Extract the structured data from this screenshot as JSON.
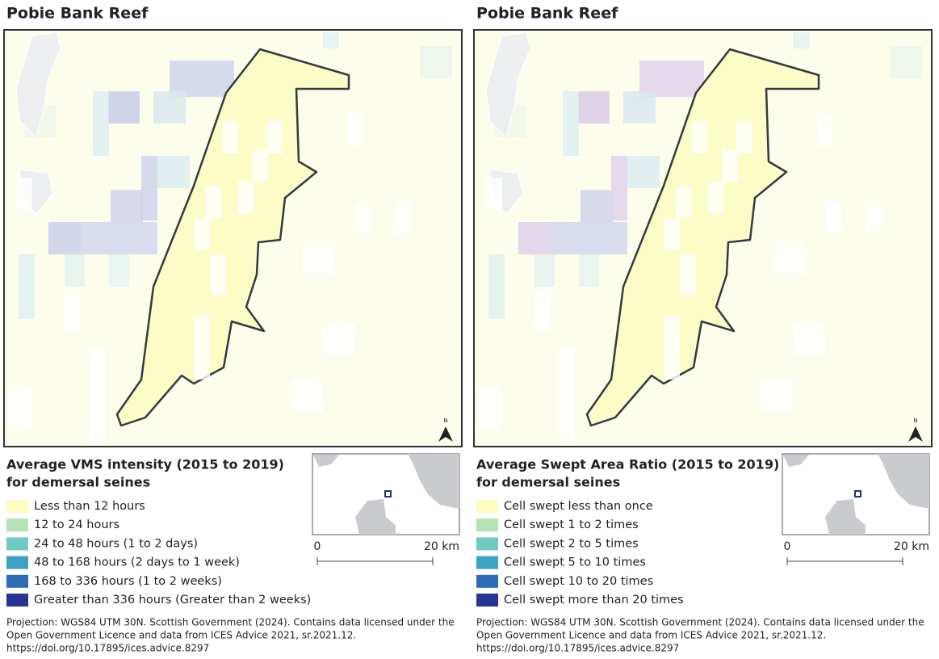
{
  "panels": [
    {
      "title": "Pobie Bank Reef",
      "legend_title": [
        "Average VMS intensity (2015 to 2019)",
        "for demersal seines"
      ],
      "legend": [
        {
          "label": "Less than 12 hours",
          "color": "#fdfdc2"
        },
        {
          "label": "12 to 24 hours",
          "color": "#b5e3b5"
        },
        {
          "label": "24 to 48 hours (1 to 2 days)",
          "color": "#6dc9c1"
        },
        {
          "label": "48 to 168 hours (2 days to 1 week)",
          "color": "#3ea2c2"
        },
        {
          "label": "168 to 336 hours (1 to 2 weeks)",
          "color": "#2d6db5"
        },
        {
          "label": "Greater than 336 hours (Greater than 2 weeks)",
          "color": "#243593"
        }
      ],
      "north": "N",
      "scale": [
        "0",
        "20 km"
      ],
      "footer": [
        "Projection: WGS84 UTM 30N. Scottish Government (2024). Contains data licensed under the",
        "Open Government Licence and data from ICES Advice 2021, sr.2021.12.",
        "https://doi.org/10.17895/ices.advice.8297"
      ]
    },
    {
      "title": "Pobie Bank Reef",
      "legend_title": [
        "Average Swept Area Ratio (2015 to 2019)",
        "for demersal seines"
      ],
      "legend": [
        {
          "label": "Cell swept less than once",
          "color": "#fdfdc2"
        },
        {
          "label": "Cell swept 1 to 2 times",
          "color": "#b5e3b5"
        },
        {
          "label": "Cell swept 2 to 5 times",
          "color": "#6dc9c1"
        },
        {
          "label": "Cell swept 5 to 10 times",
          "color": "#3ea2c2"
        },
        {
          "label": "Cell swept 10 to 20 times",
          "color": "#2d6db5"
        },
        {
          "label": "Cell swept more than 20 times",
          "color": "#243593"
        }
      ],
      "north": "N",
      "scale": [
        "0",
        "20 km"
      ],
      "footer": [
        "Projection: WGS84 UTM 30N. Scottish Government (2024). Contains data licensed under the",
        "Open Government Licence and data from ICES Advice 2021, sr.2021.12.",
        "https://doi.org/10.17895/ices.advice.8297"
      ]
    }
  ]
}
